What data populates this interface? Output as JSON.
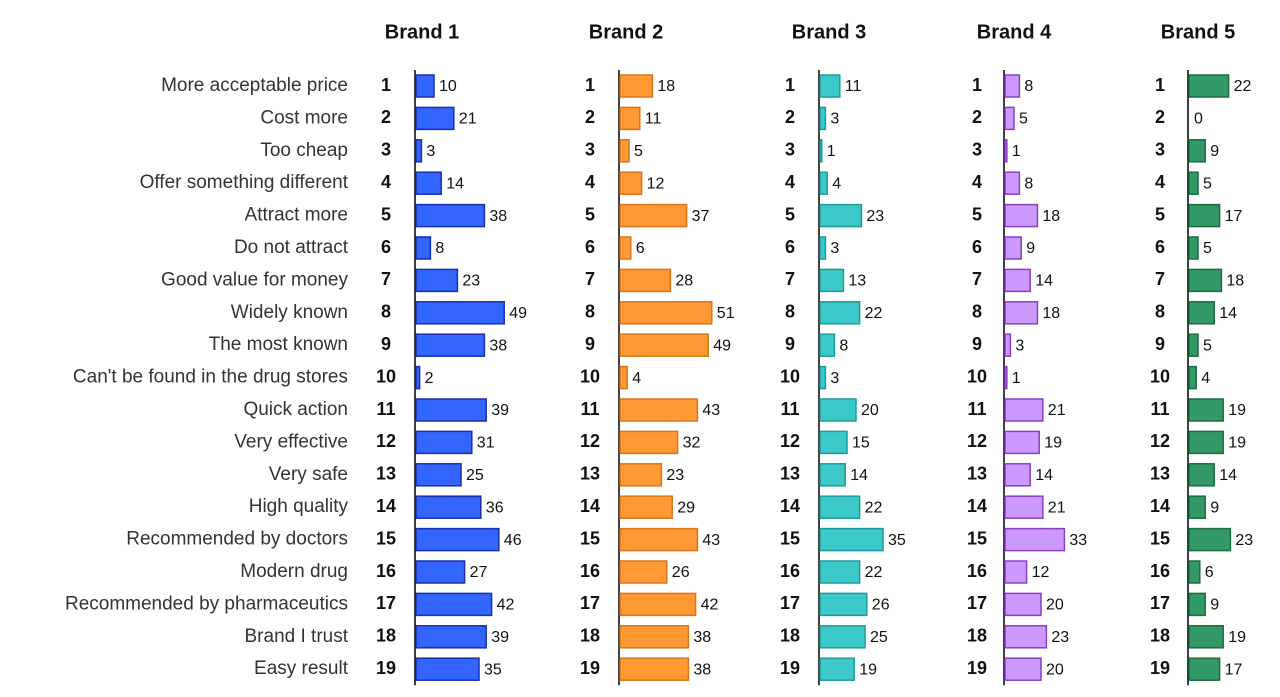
{
  "chart_data": {
    "type": "bar",
    "orientation": "horizontal",
    "title": "",
    "xlabel": "",
    "ylabel": "",
    "xlim": [
      0,
      51
    ],
    "grid": false,
    "legend": "none",
    "categories": [
      "More acceptable price",
      "Cost more",
      "Too cheap",
      "Offer something different",
      "Attract more",
      "Do not attract",
      "Good value for money",
      "Widely known",
      "The most known",
      "Can't be found in the drug stores",
      "Quick action",
      "Very effective",
      "Very safe",
      "High quality",
      "Recommended by doctors",
      "Modern drug",
      "Recommended by pharmaceutics",
      "Brand I trust",
      "Easy result"
    ],
    "row_numbers": [
      "1",
      "2",
      "3",
      "4",
      "5",
      "6",
      "7",
      "8",
      "9",
      "10",
      "11",
      "12",
      "13",
      "14",
      "15",
      "16",
      "17",
      "18",
      "19"
    ],
    "series": [
      {
        "name": "Brand 1",
        "color": "#3366ff",
        "border": "#1a2fa8",
        "values": [
          10,
          21,
          3,
          14,
          38,
          8,
          23,
          49,
          38,
          2,
          39,
          31,
          25,
          36,
          46,
          27,
          42,
          39,
          35
        ]
      },
      {
        "name": "Brand 2",
        "color": "#ff9933",
        "border": "#d9741a",
        "values": [
          18,
          11,
          5,
          12,
          37,
          6,
          28,
          51,
          49,
          4,
          43,
          32,
          23,
          29,
          43,
          26,
          42,
          38,
          38
        ]
      },
      {
        "name": "Brand 3",
        "color": "#3cc9c9",
        "border": "#1f9a9a",
        "values": [
          11,
          3,
          1,
          4,
          23,
          3,
          13,
          22,
          8,
          3,
          20,
          15,
          14,
          22,
          35,
          22,
          26,
          25,
          19
        ]
      },
      {
        "name": "Brand 4",
        "color": "#cc99ff",
        "border": "#8a3fbf",
        "values": [
          8,
          5,
          1,
          8,
          18,
          9,
          14,
          18,
          3,
          1,
          21,
          19,
          14,
          21,
          33,
          12,
          20,
          23,
          20
        ]
      },
      {
        "name": "Brand 5",
        "color": "#339966",
        "border": "#1e6b3f",
        "values": [
          22,
          0,
          9,
          5,
          17,
          5,
          18,
          14,
          5,
          4,
          19,
          19,
          14,
          9,
          23,
          6,
          9,
          19,
          17
        ]
      }
    ]
  }
}
